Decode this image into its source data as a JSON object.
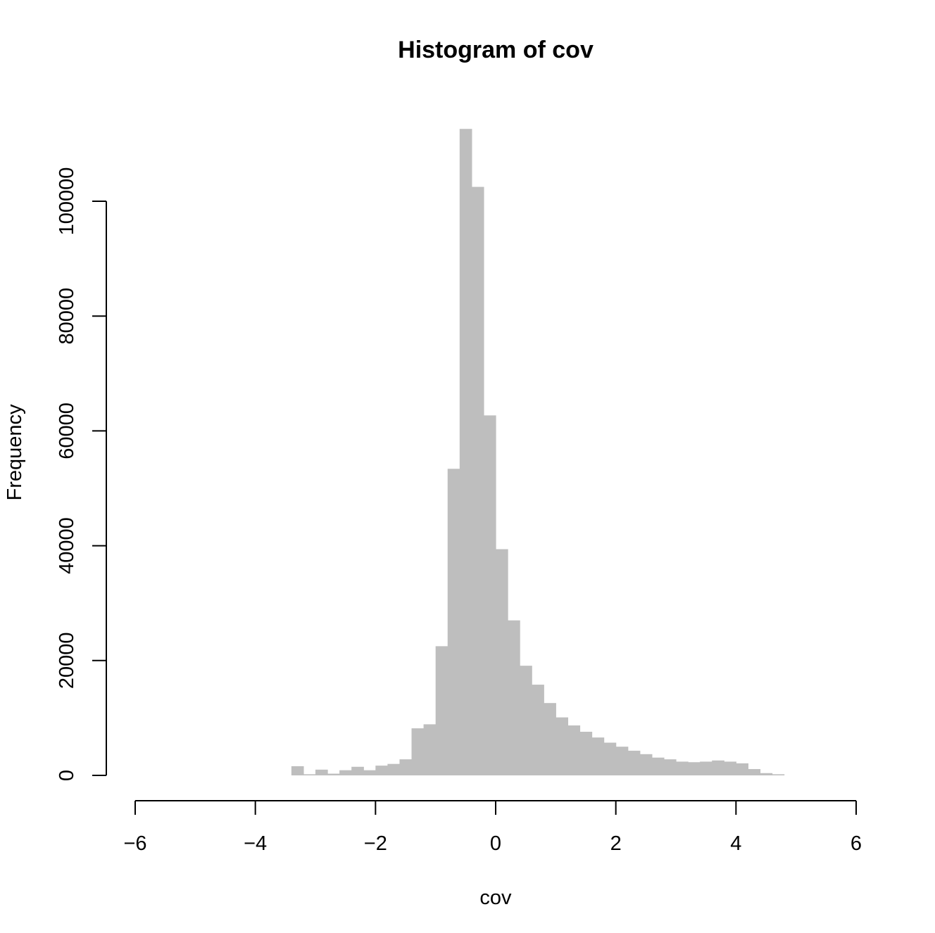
{
  "chart_data": {
    "type": "bar",
    "title": "Histogram of cov",
    "xlabel": "cov",
    "ylabel": "Frequency",
    "xlim": [
      -6,
      6
    ],
    "ylim": [
      0,
      112000
    ],
    "x_ticks": [
      -6,
      -4,
      -2,
      0,
      2,
      4,
      6
    ],
    "x_tick_labels": [
      "−6",
      "−4",
      "−2",
      "0",
      "2",
      "4",
      "6"
    ],
    "y_ticks": [
      0,
      20000,
      40000,
      60000,
      80000,
      100000
    ],
    "y_tick_labels": [
      "0",
      "20000",
      "40000",
      "60000",
      "80000",
      "100000"
    ],
    "bar_color": "#bebebe",
    "bin_width": 0.2,
    "bin_starts": [
      -3.4,
      -3.2,
      -3.0,
      -2.8,
      -2.6,
      -2.4,
      -2.2,
      -2.0,
      -1.8,
      -1.6,
      -1.4,
      -1.2,
      -1.0,
      -0.8,
      -0.6,
      -0.4,
      -0.2,
      0.0,
      0.2,
      0.4,
      0.6,
      0.8,
      1.0,
      1.2,
      1.4,
      1.6,
      1.8,
      2.0,
      2.2,
      2.4,
      2.6,
      2.8,
      3.0,
      3.2,
      3.4,
      3.6,
      3.8,
      4.0,
      4.2,
      4.4,
      4.6
    ],
    "values": [
      1600,
      200,
      1000,
      300,
      900,
      1500,
      900,
      1700,
      2000,
      2800,
      8200,
      8900,
      22500,
      53400,
      112600,
      102500,
      62700,
      39400,
      27000,
      19100,
      15800,
      12600,
      10100,
      8700,
      7600,
      6600,
      5700,
      5000,
      4300,
      3700,
      3100,
      2800,
      2400,
      2300,
      2400,
      2600,
      2400,
      2100,
      1100,
      400,
      200
    ]
  }
}
